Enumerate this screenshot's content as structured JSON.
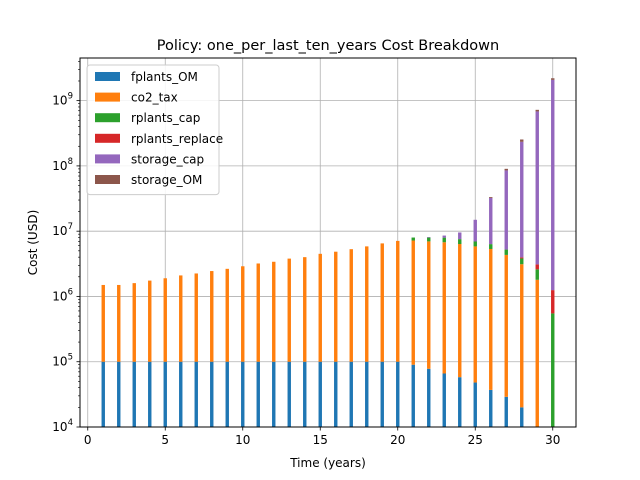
{
  "chart_data": {
    "type": "bar",
    "stacked": true,
    "title": "Policy: one_per_last_ten_years Cost Breakdown",
    "xlabel": "Time (years)",
    "ylabel": "Cost (USD)",
    "yscale": "log",
    "xlim": [
      -0.5,
      31.5
    ],
    "ylim": [
      10000,
      4500000000
    ],
    "xticks": [
      0,
      5,
      10,
      15,
      20,
      25,
      30
    ],
    "yticks": [
      10000,
      100000,
      1000000,
      10000000,
      100000000,
      1000000000
    ],
    "ytick_labels": [
      {
        "base": "10",
        "exp": "4"
      },
      {
        "base": "10",
        "exp": "5"
      },
      {
        "base": "10",
        "exp": "6"
      },
      {
        "base": "10",
        "exp": "7"
      },
      {
        "base": "10",
        "exp": "8"
      },
      {
        "base": "10",
        "exp": "9"
      }
    ],
    "grid": true,
    "legend": "top-left",
    "x": [
      1,
      2,
      3,
      4,
      5,
      6,
      7,
      8,
      9,
      10,
      11,
      12,
      13,
      14,
      15,
      16,
      17,
      18,
      19,
      20,
      21,
      22,
      23,
      24,
      25,
      26,
      27,
      28,
      29,
      30
    ],
    "series": [
      {
        "name": "fplants_OM",
        "color": "#1f77b4",
        "values": [
          100000,
          100000,
          100000,
          100000,
          100000,
          100000,
          100000,
          100000,
          100000,
          100000,
          100000,
          100000,
          100000,
          100000,
          100000,
          100000,
          100000,
          100000,
          100000,
          100000,
          90000,
          78000,
          66000,
          58000,
          48000,
          37000,
          29000,
          20000,
          0,
          0
        ]
      },
      {
        "name": "co2_tax",
        "color": "#ff7f0e",
        "values": [
          1400000,
          1400000,
          1500000,
          1650000,
          1800000,
          2000000,
          2150000,
          2350000,
          2550000,
          2800000,
          3100000,
          3300000,
          3700000,
          3900000,
          4400000,
          4750000,
          5200000,
          5750000,
          6400000,
          7000000,
          7100000,
          6900000,
          6700000,
          6300000,
          5800000,
          5300000,
          4300000,
          3100000,
          1800000,
          0
        ]
      },
      {
        "name": "rplants_cap",
        "color": "#2ca02c",
        "values": [
          0,
          0,
          0,
          0,
          0,
          0,
          0,
          0,
          0,
          0,
          0,
          0,
          0,
          0,
          0,
          0,
          0,
          0,
          0,
          0,
          800000,
          1000000,
          1200000,
          1200000,
          1100000,
          1000000,
          900000,
          700000,
          800000,
          550000
        ]
      },
      {
        "name": "rplants_replace",
        "color": "#d62728",
        "values": [
          0,
          0,
          0,
          0,
          0,
          0,
          0,
          0,
          0,
          0,
          0,
          0,
          0,
          0,
          0,
          0,
          0,
          0,
          0,
          0,
          0,
          0,
          0,
          0,
          0,
          0,
          0,
          150000,
          500000,
          700000
        ]
      },
      {
        "name": "storage_cap",
        "color": "#9467bd",
        "values": [
          0,
          0,
          0,
          0,
          0,
          0,
          0,
          0,
          0,
          0,
          0,
          0,
          0,
          0,
          0,
          0,
          0,
          0,
          0,
          0,
          0,
          150000,
          600000,
          2000000,
          8000000,
          26000000,
          80000000,
          230000000,
          680000000,
          2080000000
        ]
      },
      {
        "name": "storage_OM",
        "color": "#8c564b",
        "values": [
          0,
          0,
          0,
          0,
          0,
          0,
          0,
          0,
          0,
          0,
          0,
          0,
          0,
          0,
          0,
          0,
          0,
          0,
          0,
          0,
          0,
          0,
          0,
          0,
          0,
          1000000,
          5000000,
          20000000,
          40000000,
          120000000
        ]
      }
    ]
  }
}
